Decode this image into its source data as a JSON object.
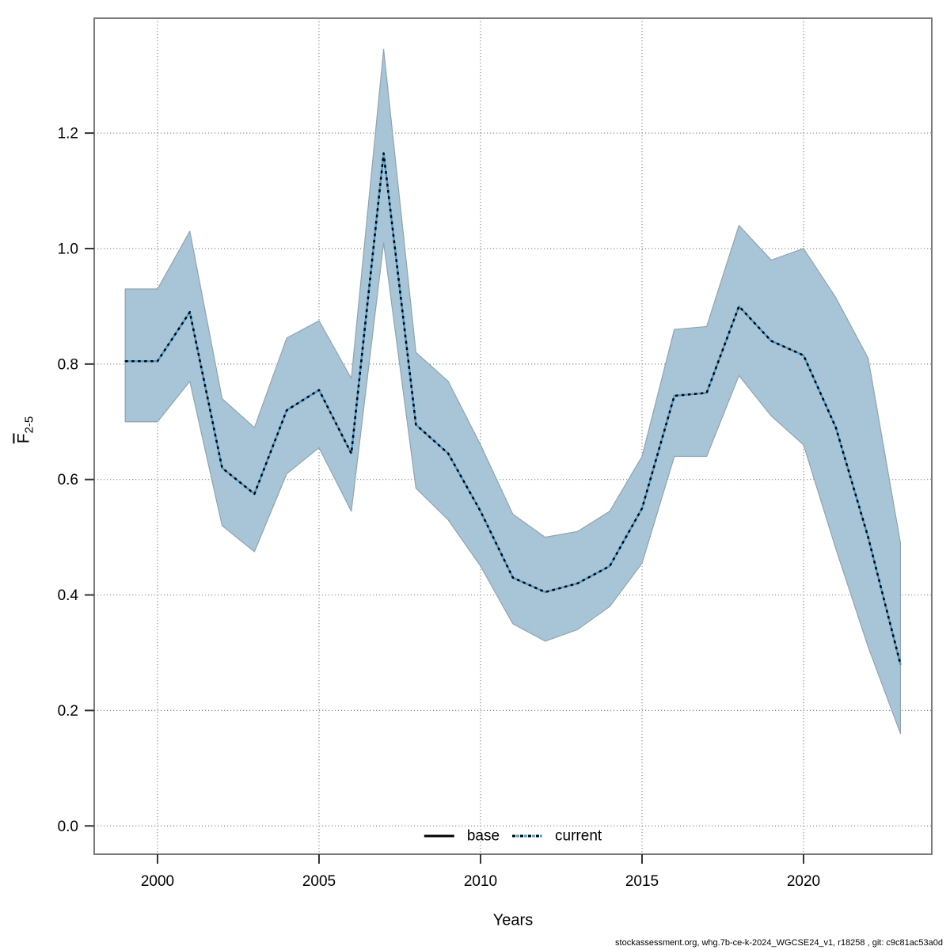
{
  "chart_data": {
    "type": "line",
    "title": "",
    "xlabel": "Years",
    "ylabel_main": "F",
    "ylabel_sub": "2-5",
    "ylabel_semantic": "mean fishing mortality ages 2-5 (F-bar 2-5)",
    "xlim": [
      1998.04,
      2023.97
    ],
    "ylim": [
      -0.049,
      1.399
    ],
    "grid": true,
    "x_ticks": [
      2000,
      2005,
      2010,
      2015,
      2020
    ],
    "x_tick_labels": [
      "2000",
      "2005",
      "2010",
      "2015",
      "2020"
    ],
    "y_ticks": [
      0.0,
      0.2,
      0.4,
      0.6,
      0.8,
      1.0,
      1.2
    ],
    "y_tick_labels": [
      "0.0",
      "0.2",
      "0.4",
      "0.6",
      "0.8",
      "1.0",
      "1.2"
    ],
    "years": [
      1999,
      2000,
      2001,
      2002,
      2003,
      2004,
      2005,
      2006,
      2007,
      2008,
      2009,
      2010,
      2011,
      2012,
      2013,
      2014,
      2015,
      2016,
      2017,
      2018,
      2019,
      2020,
      2021,
      2022,
      2023
    ],
    "series": [
      {
        "name": "current",
        "style": "dotted blue over black",
        "values": [
          0.805,
          0.805,
          0.89,
          0.62,
          0.575,
          0.72,
          0.755,
          0.645,
          1.165,
          0.695,
          0.645,
          0.545,
          0.43,
          0.405,
          0.42,
          0.45,
          0.55,
          0.745,
          0.75,
          0.9,
          0.84,
          0.815,
          0.69,
          0.5,
          0.28
        ]
      }
    ],
    "band": {
      "name": "confidence-interval",
      "lower": [
        0.7,
        0.7,
        0.77,
        0.52,
        0.475,
        0.61,
        0.655,
        0.545,
        1.01,
        0.585,
        0.53,
        0.45,
        0.35,
        0.32,
        0.34,
        0.38,
        0.455,
        0.64,
        0.64,
        0.78,
        0.71,
        0.66,
        0.48,
        0.31,
        0.16
      ],
      "upper": [
        0.93,
        0.93,
        1.03,
        0.74,
        0.69,
        0.845,
        0.875,
        0.775,
        1.345,
        0.82,
        0.77,
        0.66,
        0.54,
        0.5,
        0.51,
        0.545,
        0.64,
        0.86,
        0.865,
        1.04,
        0.98,
        1.0,
        0.915,
        0.81,
        0.49
      ]
    },
    "legend": {
      "position": "bottom-center",
      "items": [
        {
          "label": "base",
          "style": "solid",
          "color": "#000000"
        },
        {
          "label": "current",
          "style": "dotted",
          "color": "#4f9dcd"
        }
      ]
    },
    "colors": {
      "band_fill": "#a8c5d8",
      "band_edge": "#8fa3b0",
      "line_blue": "#4f9dcd",
      "line_black": "#000000",
      "grid": "#8c8c8c",
      "frame": "#7a7a7a",
      "tick": "#333333"
    }
  },
  "footer": {
    "text": "stockassessment.org, whg.7b-ce-k-2024_WGCSE24_v1, r18258 , git: c9c81ac53a0d"
  }
}
